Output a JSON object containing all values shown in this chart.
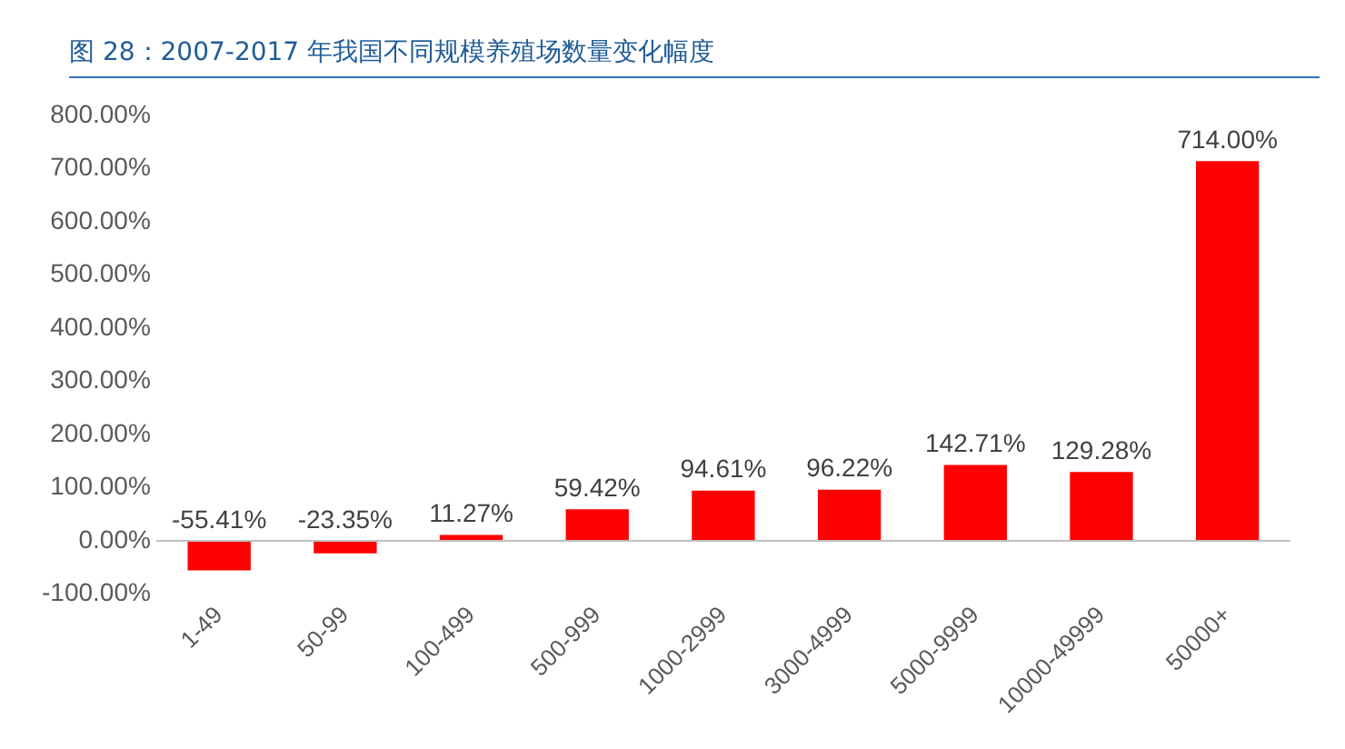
{
  "chart_data": {
    "type": "bar",
    "title": "图 28：2007-2017 年我国不同规模养殖场数量变化幅度",
    "categories": [
      "1-49",
      "50-99",
      "100-499",
      "500-999",
      "1000-2999",
      "3000-4999",
      "5000-9999",
      "10000-49999",
      "50000+"
    ],
    "values": [
      -55.41,
      -23.35,
      11.27,
      59.42,
      94.61,
      96.22,
      142.71,
      129.28,
      714.0
    ],
    "value_labels": [
      "-55.41%",
      "-23.35%",
      "11.27%",
      "59.42%",
      "94.61%",
      "96.22%",
      "142.71%",
      "129.28%",
      "714.00%"
    ],
    "color": "#ff0000",
    "ylim": [
      -100,
      800
    ],
    "yticks": [
      {
        "value": -100,
        "label": "-100.00%"
      },
      {
        "value": 0,
        "label": "0.00%"
      },
      {
        "value": 100,
        "label": "100.00%"
      },
      {
        "value": 200,
        "label": "200.00%"
      },
      {
        "value": 300,
        "label": "300.00%"
      },
      {
        "value": 400,
        "label": "400.00%"
      },
      {
        "value": 500,
        "label": "500.00%"
      },
      {
        "value": 600,
        "label": "600.00%"
      },
      {
        "value": 700,
        "label": "700.00%"
      },
      {
        "value": 800,
        "label": "800.00%"
      }
    ],
    "grid": false,
    "legend": false
  }
}
